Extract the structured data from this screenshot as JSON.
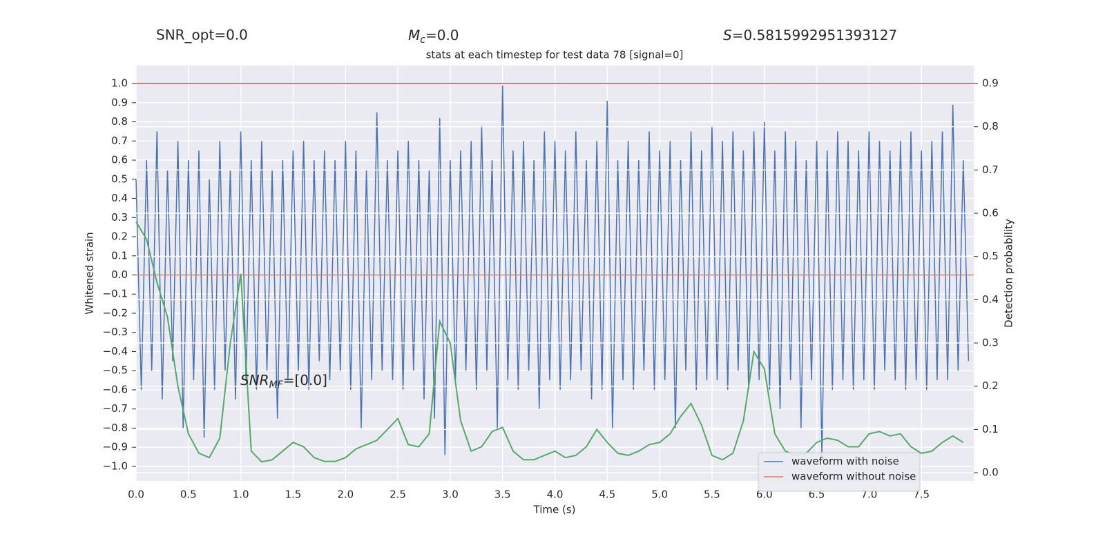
{
  "chart_data": {
    "type": "line",
    "title": "stats at each timestep for test data 78 [signal=0]",
    "annotations": {
      "snr_opt": "SNR_opt=0.0",
      "mc": {
        "base": "M",
        "sub": "c",
        "rest": "=0.0"
      },
      "s": {
        "base": "S",
        "rest": "=0.5815992951393127"
      },
      "snr_mf": {
        "base": "SNR",
        "sub": "MF",
        "rest": "=[0.0]"
      }
    },
    "xlabel": "Time (s)",
    "ylabel": "Whitened strain",
    "y2label": "Detection probability",
    "xlim": [
      0,
      8
    ],
    "ylim": [
      -1.076,
      1.094
    ],
    "y2lim": [
      -0.019,
      0.9415
    ],
    "xticks": [
      {
        "value": 0,
        "label": "0.0"
      },
      0.5,
      {
        "value": 1,
        "label": "1.0"
      },
      1.5,
      {
        "value": 2,
        "label": "2.0"
      },
      2.5,
      {
        "value": 3,
        "label": "3.0"
      },
      3.5,
      {
        "value": 4,
        "label": "4.0"
      },
      4.5,
      {
        "value": 5,
        "label": "5.0"
      },
      5.5,
      {
        "value": 6,
        "label": "6.0"
      },
      6.5,
      {
        "value": 7,
        "label": "7.0"
      },
      7.5
    ],
    "yticks": [
      {
        "value": 1,
        "label": "1.0"
      },
      0.9,
      0.8,
      0.7,
      0.6,
      0.5,
      0.4,
      0.3,
      0.2,
      0.1,
      {
        "value": 0,
        "label": "0.0"
      },
      {
        "value": -0.1,
        "label": "−0.1"
      },
      {
        "value": -0.2,
        "label": "−0.2"
      },
      {
        "value": -0.3,
        "label": "−0.3"
      },
      {
        "value": -0.4,
        "label": "−0.4"
      },
      {
        "value": -0.5,
        "label": "−0.5"
      },
      {
        "value": -0.6,
        "label": "−0.6"
      },
      {
        "value": -0.7,
        "label": "−0.7"
      },
      {
        "value": -0.8,
        "label": "−0.8"
      },
      {
        "value": -0.9,
        "label": "−0.9"
      },
      {
        "value": -1,
        "label": "−1.0"
      }
    ],
    "y2ticks": [
      {
        "value": 0,
        "label": "0.0"
      },
      0.1,
      0.2,
      0.3,
      0.4,
      0.5,
      0.6,
      0.7,
      0.8,
      0.9
    ],
    "grid": true,
    "legend": "lower right",
    "threshold": {
      "value": 0.9,
      "axis": "y2",
      "color": "#c44e52"
    },
    "series": [
      {
        "name": "waveform with noise",
        "color": "#4c72b0",
        "x": [
          0,
          0.05,
          0.1,
          0.15,
          0.2,
          0.25,
          0.3,
          0.35,
          0.4,
          0.45,
          0.5,
          0.55,
          0.6,
          0.65,
          0.7,
          0.75,
          0.8,
          0.85,
          0.9,
          0.95,
          1,
          1.05,
          1.1,
          1.15,
          1.2,
          1.25,
          1.3,
          1.35,
          1.4,
          1.45,
          1.5,
          1.55,
          1.6,
          1.65,
          1.7,
          1.75,
          1.8,
          1.85,
          1.9,
          1.95,
          2,
          2.05,
          2.1,
          2.15,
          2.2,
          2.25,
          2.3,
          2.35,
          2.4,
          2.45,
          2.5,
          2.55,
          2.6,
          2.65,
          2.7,
          2.75,
          2.8,
          2.85,
          2.9,
          2.95,
          3,
          3.05,
          3.1,
          3.15,
          3.2,
          3.25,
          3.3,
          3.35,
          3.4,
          3.45,
          3.5,
          3.55,
          3.6,
          3.65,
          3.7,
          3.75,
          3.8,
          3.85,
          3.9,
          3.95,
          4,
          4.05,
          4.1,
          4.15,
          4.2,
          4.25,
          4.3,
          4.35,
          4.4,
          4.45,
          4.5,
          4.55,
          4.6,
          4.65,
          4.7,
          4.75,
          4.8,
          4.85,
          4.9,
          4.95,
          5,
          5.05,
          5.1,
          5.15,
          5.2,
          5.25,
          5.3,
          5.35,
          5.4,
          5.45,
          5.5,
          5.55,
          5.6,
          5.65,
          5.7,
          5.75,
          5.8,
          5.85,
          5.9,
          5.95,
          6,
          6.05,
          6.1,
          6.15,
          6.2,
          6.25,
          6.3,
          6.35,
          6.4,
          6.45,
          6.5,
          6.55,
          6.6,
          6.65,
          6.7,
          6.75,
          6.8,
          6.85,
          6.9,
          6.95,
          7,
          7.05,
          7.1,
          7.15,
          7.2,
          7.25,
          7.3,
          7.35,
          7.4,
          7.45,
          7.5,
          7.55,
          7.6,
          7.65,
          7.7,
          7.75,
          7.8,
          7.85,
          7.9,
          7.95
        ],
        "values": [
          0.5,
          -0.6,
          0.6,
          -0.5,
          0.75,
          -0.65,
          0.55,
          -0.45,
          0.7,
          -0.8,
          0.6,
          -0.55,
          0.65,
          -0.85,
          0.5,
          -0.6,
          0.7,
          -0.5,
          0.55,
          -0.65,
          0.75,
          -0.55,
          0.6,
          -0.6,
          0.7,
          -0.5,
          0.55,
          -0.75,
          0.6,
          -0.55,
          0.65,
          -0.5,
          0.7,
          -0.6,
          0.6,
          -0.45,
          0.65,
          -0.55,
          0.6,
          -0.5,
          0.7,
          -0.6,
          0.65,
          -0.8,
          0.55,
          -0.55,
          0.85,
          -0.5,
          0.6,
          -0.55,
          0.65,
          -0.6,
          0.7,
          -0.5,
          0.6,
          -0.65,
          0.55,
          -0.75,
          0.82,
          -0.94,
          0.6,
          -0.55,
          0.65,
          -0.5,
          0.7,
          -0.6,
          0.78,
          -0.5,
          0.6,
          -0.8,
          0.99,
          -0.55,
          0.65,
          -0.6,
          0.7,
          -0.5,
          0.6,
          -0.7,
          0.75,
          -0.55,
          0.7,
          -0.6,
          0.65,
          -0.55,
          0.75,
          -0.5,
          0.6,
          -0.65,
          0.7,
          -0.6,
          0.91,
          -0.8,
          0.6,
          -0.55,
          0.7,
          -0.6,
          0.6,
          -0.5,
          0.75,
          -0.6,
          0.65,
          -0.55,
          0.7,
          -0.8,
          0.6,
          -0.5,
          0.75,
          -0.6,
          0.65,
          -0.55,
          0.78,
          -0.55,
          0.7,
          -0.6,
          0.75,
          -0.5,
          0.65,
          -0.6,
          0.75,
          -0.55,
          0.8,
          -0.6,
          0.65,
          -0.7,
          0.75,
          -0.55,
          0.7,
          -0.8,
          0.6,
          -0.55,
          0.7,
          -0.95,
          0.65,
          -0.6,
          0.75,
          -0.55,
          0.7,
          -0.6,
          0.65,
          -0.55,
          0.75,
          -0.6,
          0.7,
          -0.5,
          0.65,
          -0.55,
          0.7,
          -0.6,
          0.75,
          -0.55,
          0.65,
          -0.6,
          0.7,
          -0.55,
          0.75,
          -0.55,
          0.89,
          -0.5,
          0.6,
          -0.45
        ]
      },
      {
        "name": "waveform without noise",
        "color": "#dd8452",
        "x": [
          0,
          8
        ],
        "values": [
          0,
          0
        ]
      },
      {
        "color": "#55a868",
        "axis": "y2",
        "x": [
          0,
          0.1,
          0.2,
          0.3,
          0.4,
          0.5,
          0.6,
          0.7,
          0.8,
          0.9,
          1,
          1.1,
          1.2,
          1.3,
          1.4,
          1.5,
          1.6,
          1.7,
          1.8,
          1.9,
          2,
          2.1,
          2.2,
          2.3,
          2.4,
          2.5,
          2.6,
          2.7,
          2.8,
          2.9,
          3,
          3.1,
          3.2,
          3.3,
          3.4,
          3.5,
          3.6,
          3.7,
          3.8,
          3.9,
          4,
          4.1,
          4.2,
          4.3,
          4.4,
          4.5,
          4.6,
          4.7,
          4.8,
          4.9,
          5,
          5.1,
          5.2,
          5.3,
          5.4,
          5.5,
          5.6,
          5.7,
          5.8,
          5.9,
          6,
          6.1,
          6.2,
          6.3,
          6.4,
          6.5,
          6.6,
          6.7,
          6.8,
          6.9,
          7,
          7.1,
          7.2,
          7.3,
          7.4,
          7.5,
          7.6,
          7.7,
          7.8,
          7.9
        ],
        "values": [
          0.58,
          0.54,
          0.44,
          0.36,
          0.2,
          0.09,
          0.045,
          0.035,
          0.08,
          0.3,
          0.46,
          0.05,
          0.025,
          0.03,
          0.05,
          0.07,
          0.06,
          0.035,
          0.026,
          0.026,
          0.035,
          0.055,
          0.065,
          0.075,
          0.1,
          0.125,
          0.065,
          0.06,
          0.09,
          0.35,
          0.3,
          0.12,
          0.05,
          0.06,
          0.095,
          0.105,
          0.05,
          0.03,
          0.03,
          0.04,
          0.05,
          0.035,
          0.04,
          0.06,
          0.1,
          0.07,
          0.045,
          0.04,
          0.05,
          0.065,
          0.07,
          0.09,
          0.13,
          0.16,
          0.11,
          0.04,
          0.03,
          0.045,
          0.12,
          0.28,
          0.24,
          0.09,
          0.05,
          0.04,
          0.045,
          0.07,
          0.08,
          0.075,
          0.06,
          0.06,
          0.09,
          0.095,
          0.085,
          0.09,
          0.06,
          0.045,
          0.05,
          0.07,
          0.085,
          0.07
        ]
      }
    ]
  }
}
